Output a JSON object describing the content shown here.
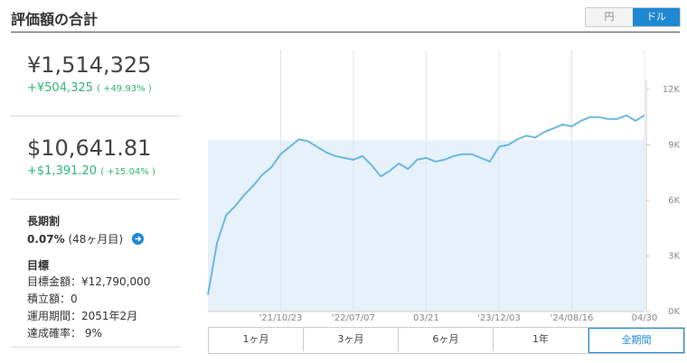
{
  "header": {
    "title": "評価額の合計",
    "currency_toggle": [
      "円",
      "ドル"
    ],
    "active_currency": 1
  },
  "summary": {
    "jpy": {
      "total": "¥1,514,325",
      "gain": "+¥504,325",
      "gain_pct": "( +49.93% )"
    },
    "usd": {
      "total": "$10,641.81",
      "gain": "+$1,391.20",
      "gain_pct": "( +15.04% )"
    },
    "discount": {
      "title": "長期割",
      "rate": "0.07%",
      "months": "(48ヶ月目)"
    },
    "goal": {
      "title": "目標",
      "items": [
        "目標金額：¥12,790,000",
        "積立額：0",
        "運用期間：2051年2月",
        "達成確率： 9%"
      ]
    }
  },
  "chart_data": {
    "type": "line",
    "series": [
      {
        "name": "評価額",
        "color": "#6bb8e0",
        "values": [
          900,
          3700,
          5200,
          5700,
          6300,
          6800,
          7400,
          7800,
          8500,
          8900,
          9300,
          9200,
          8900,
          8600,
          8400,
          8300,
          8200,
          8400,
          7900,
          7300,
          7600,
          8000,
          7700,
          8200,
          8300,
          8100,
          8200,
          8400,
          8500,
          8500,
          8300,
          8100,
          8900,
          9000,
          9300,
          9500,
          9400,
          9700,
          9900,
          10100,
          10000,
          10300,
          10500,
          10500,
          10400,
          10400,
          10600,
          10300,
          10600
        ]
      }
    ],
    "baseline": 9250,
    "baseline_color": "#e6f1fa",
    "xticks": [
      {
        "value": 8,
        "label": "'21/10/23"
      },
      {
        "value": 16,
        "label": "'22/07/07"
      },
      {
        "value": 24,
        "label": "03/21"
      },
      {
        "value": 32,
        "label": "'23/12/03"
      },
      {
        "value": 40,
        "label": "'24/08/16"
      },
      {
        "value": 48,
        "label": "04/30"
      }
    ],
    "ylim": [
      0,
      12000
    ],
    "yticks": [
      {
        "value": 0,
        "label": "0K"
      },
      {
        "value": 3000,
        "label": "3K"
      },
      {
        "value": 6000,
        "label": "6K"
      },
      {
        "value": 9000,
        "label": "9K"
      },
      {
        "value": 12000,
        "label": "12K"
      }
    ],
    "grid": true
  },
  "ranges": [
    "1ヶ月",
    "3ヶ月",
    "6ヶ月",
    "1年",
    "全期間"
  ],
  "active_range": 4
}
